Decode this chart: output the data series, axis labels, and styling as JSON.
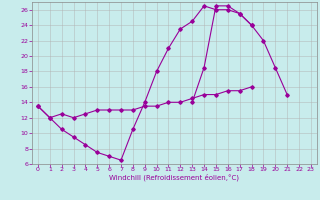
{
  "xlabel": "Windchill (Refroidissement éolien,°C)",
  "ylabel": "",
  "bg_color": "#c8ecec",
  "line_color": "#990099",
  "grid_color": "#b0b0b0",
  "xlim": [
    -0.5,
    23.5
  ],
  "ylim": [
    6,
    27
  ],
  "xticks": [
    0,
    1,
    2,
    3,
    4,
    5,
    6,
    7,
    8,
    9,
    10,
    11,
    12,
    13,
    14,
    15,
    16,
    17,
    18,
    19,
    20,
    21,
    22,
    23
  ],
  "yticks": [
    6,
    8,
    10,
    12,
    14,
    16,
    18,
    20,
    22,
    24,
    26
  ],
  "line1_x": [
    0,
    1,
    2,
    3,
    4,
    5,
    6,
    7,
    8,
    9,
    10,
    11,
    12,
    13,
    14,
    15,
    16,
    17,
    18,
    19,
    20,
    21,
    22,
    23
  ],
  "line1_y": [
    13.5,
    12.0,
    10.5,
    9.5,
    8.5,
    7.5,
    7.0,
    6.5,
    10.5,
    14.0,
    18.0,
    21.0,
    23.5,
    24.5,
    26.5,
    26.0,
    26.0,
    25.5,
    24.0,
    22.0,
    18.5,
    15.0,
    null,
    null
  ],
  "line2_x": [
    0,
    1,
    2,
    3,
    4,
    5,
    6,
    7,
    8,
    9,
    10,
    11,
    12,
    13,
    14,
    15,
    16,
    17,
    18,
    19,
    20,
    21,
    22,
    23
  ],
  "line2_y": [
    13.5,
    12.0,
    12.5,
    12.0,
    12.5,
    13.0,
    13.0,
    13.0,
    13.0,
    13.5,
    13.5,
    14.0,
    14.0,
    14.5,
    15.0,
    15.0,
    15.5,
    15.5,
    16.0,
    null,
    null,
    null,
    null,
    null
  ],
  "line3_x": [
    0,
    1,
    2,
    3,
    4,
    5,
    6,
    7,
    8,
    9,
    10,
    11,
    12,
    13,
    14,
    15,
    16,
    17,
    18,
    19,
    20,
    21,
    22,
    23
  ],
  "line3_y": [
    null,
    null,
    null,
    null,
    null,
    null,
    null,
    null,
    null,
    null,
    null,
    null,
    null,
    14.0,
    18.5,
    26.5,
    26.5,
    25.5,
    24.0,
    null,
    null,
    null,
    null,
    null
  ],
  "figsize": [
    3.2,
    2.0
  ],
  "dpi": 100
}
